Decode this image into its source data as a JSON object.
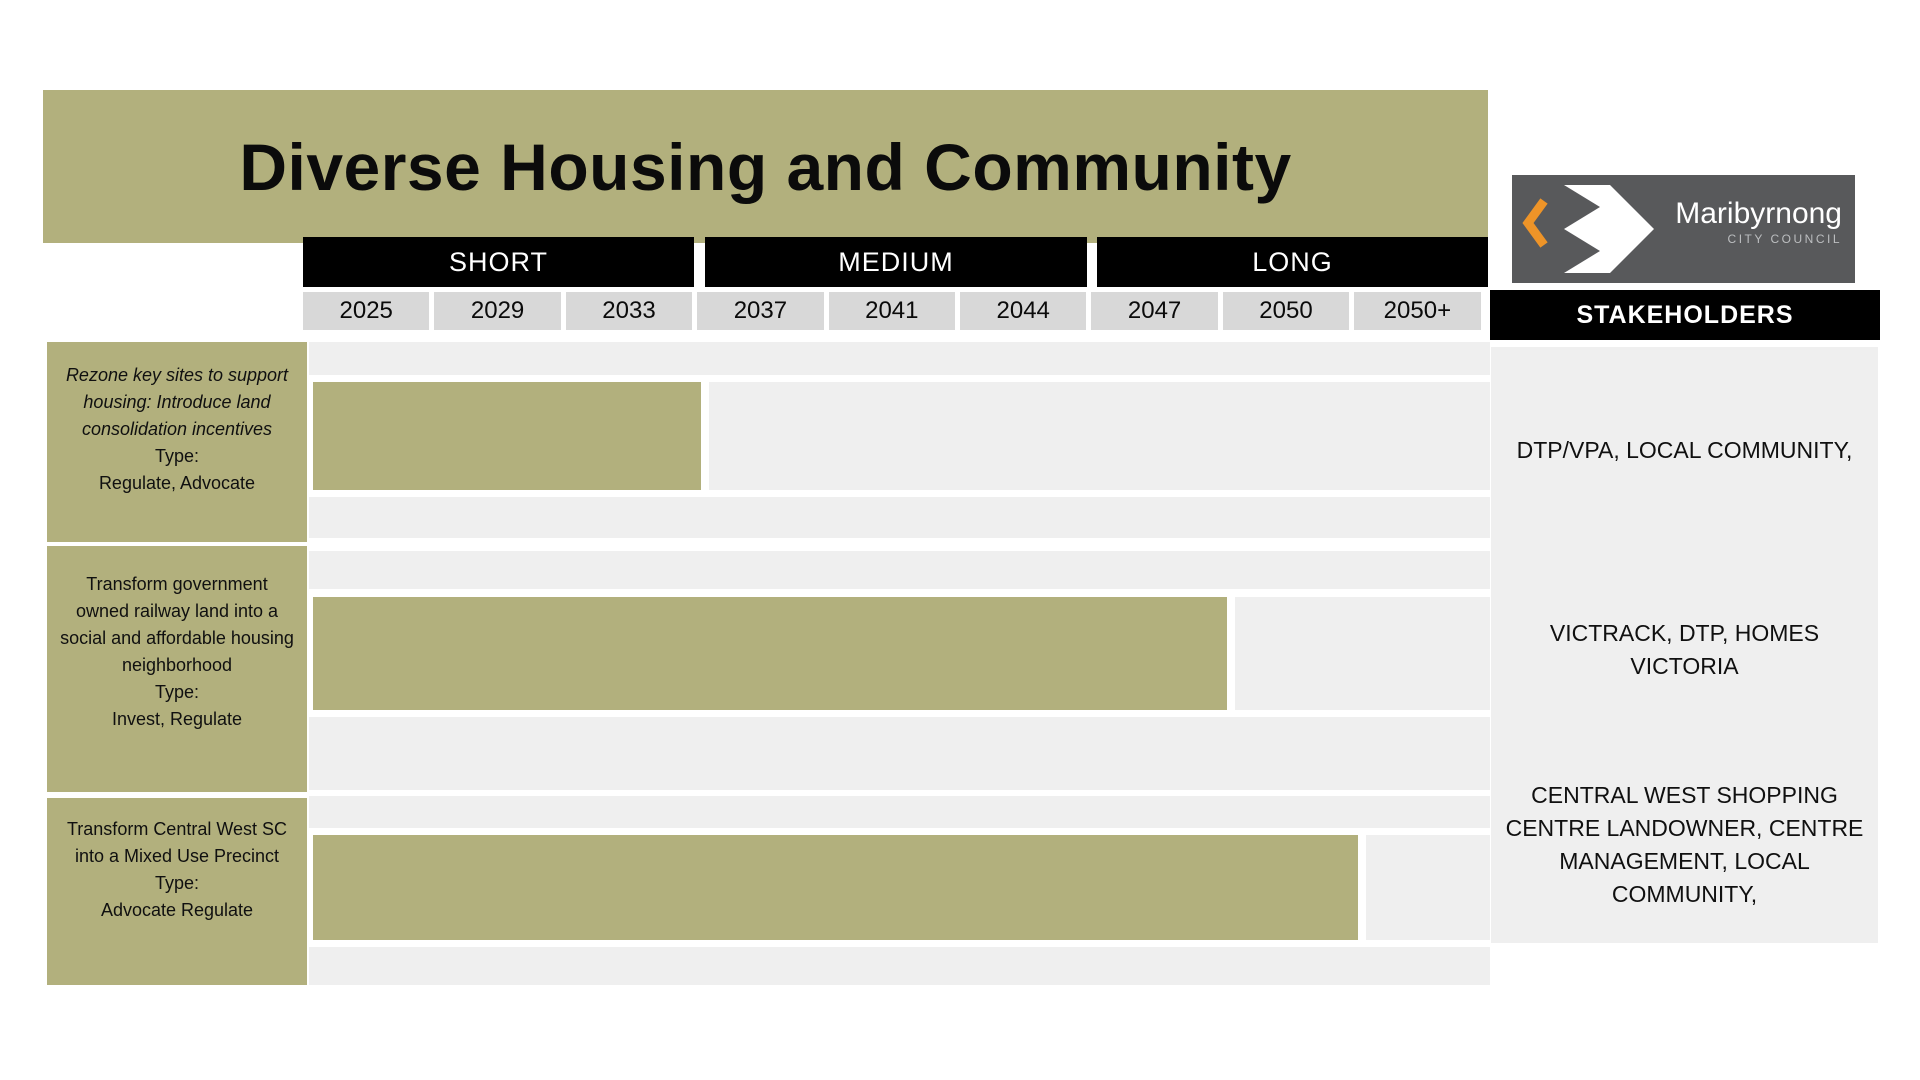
{
  "title": "Diverse Housing and Community",
  "logo": {
    "name": "Maribyrnong",
    "subtitle": "CITY COUNCIL"
  },
  "stakeholders_header": "STAKEHOLDERS",
  "timeline": {
    "periods": [
      {
        "label": "SHORT"
      },
      {
        "label": "MEDIUM"
      },
      {
        "label": "LONG"
      }
    ],
    "years": [
      "2025",
      "2029",
      "2033",
      "2037",
      "2041",
      "2044",
      "2047",
      "2050",
      "2050+"
    ]
  },
  "rows": [
    {
      "action": "Rezone key sites to support housing: Introduce land consolidation incentives",
      "action_italic": true,
      "type_label": "Type:",
      "type_value": "Regulate, Advocate",
      "bar": {
        "start_year": "2025",
        "end_year": "2033"
      },
      "stakeholders": "DTP/VPA, LOCAL COMMUNITY,"
    },
    {
      "action": "Transform government owned railway land into a social and affordable housing neighborhood",
      "action_italic": false,
      "type_label": "Type:",
      "type_value": "Invest, Regulate",
      "bar": {
        "start_year": "2025",
        "end_year": "2047"
      },
      "stakeholders": "VICTRACK, DTP, HOMES VICTORIA"
    },
    {
      "action": "Transform Central West SC into a Mixed Use Precinct",
      "action_italic": false,
      "type_label": "Type:",
      "type_value": "Advocate Regulate",
      "bar": {
        "start_year": "2025",
        "end_year": "2050"
      },
      "stakeholders": "CENTRAL WEST SHOPPING CENTRE LANDOWNER, CENTRE MANAGEMENT, LOCAL COMMUNITY,"
    }
  ],
  "colors": {
    "olive": "#b2b07d",
    "grid_bg": "#efefef",
    "year_cell_bg": "#d8d8d8",
    "header_bar_bg": "#000000",
    "logo_bg": "#58595b",
    "logo_orange": "#ee9428"
  }
}
